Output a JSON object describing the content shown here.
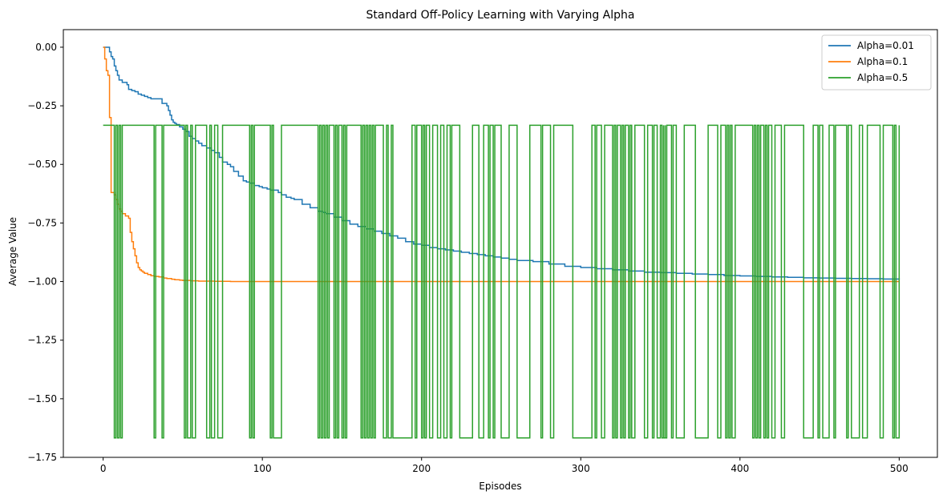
{
  "chart_data": {
    "type": "line",
    "title": "Standard Off-Policy Learning with Varying Alpha",
    "xlabel": "Episodes",
    "ylabel": "Average Value",
    "xlim": [
      -25,
      524
    ],
    "ylim": [
      -1.75,
      0.075
    ],
    "xticks": [
      0,
      100,
      200,
      300,
      400,
      500
    ],
    "xtick_labels": [
      "0",
      "100",
      "200",
      "300",
      "400",
      "500"
    ],
    "yticks": [
      0.0,
      -0.25,
      -0.5,
      -0.75,
      -1.0,
      -1.25,
      -1.5,
      -1.75
    ],
    "ytick_labels": [
      "0.00",
      "−0.25",
      "−0.50",
      "−0.75",
      "−1.00",
      "−1.25",
      "−1.50",
      "−1.75"
    ],
    "grid": false,
    "legend_position": "top-right",
    "series": [
      {
        "name": "Alpha=0.01",
        "color": "#1f77b4",
        "x": [
          0,
          3,
          4,
          5,
          6,
          7,
          8,
          9,
          10,
          12,
          15,
          16,
          18,
          20,
          22,
          24,
          26,
          28,
          30,
          35,
          37,
          40,
          41,
          42,
          43,
          44,
          45,
          46,
          48,
          50,
          52,
          54,
          56,
          58,
          60,
          62,
          65,
          68,
          70,
          73,
          75,
          78,
          80,
          82,
          85,
          88,
          90,
          92,
          95,
          98,
          100,
          103,
          105,
          110,
          112,
          115,
          118,
          120,
          125,
          130,
          135,
          138,
          140,
          145,
          150,
          155,
          160,
          165,
          170,
          175,
          180,
          185,
          190,
          195,
          200,
          205,
          210,
          215,
          220,
          225,
          230,
          235,
          240,
          245,
          250,
          255,
          260,
          270,
          280,
          290,
          300,
          310,
          320,
          330,
          340,
          350,
          360,
          370,
          380,
          390,
          400,
          410,
          420,
          430,
          440,
          450,
          460,
          470,
          480,
          490,
          500
        ],
        "y": [
          0.0,
          0.0,
          -0.02,
          -0.04,
          -0.05,
          -0.08,
          -0.1,
          -0.12,
          -0.14,
          -0.15,
          -0.16,
          -0.18,
          -0.185,
          -0.19,
          -0.2,
          -0.205,
          -0.21,
          -0.215,
          -0.22,
          -0.22,
          -0.24,
          -0.25,
          -0.27,
          -0.29,
          -0.31,
          -0.32,
          -0.325,
          -0.33,
          -0.34,
          -0.35,
          -0.36,
          -0.38,
          -0.39,
          -0.4,
          -0.41,
          -0.42,
          -0.43,
          -0.44,
          -0.45,
          -0.47,
          -0.49,
          -0.5,
          -0.51,
          -0.53,
          -0.55,
          -0.57,
          -0.575,
          -0.58,
          -0.59,
          -0.595,
          -0.6,
          -0.605,
          -0.61,
          -0.62,
          -0.63,
          -0.64,
          -0.645,
          -0.65,
          -0.67,
          -0.685,
          -0.7,
          -0.705,
          -0.71,
          -0.725,
          -0.74,
          -0.755,
          -0.765,
          -0.775,
          -0.785,
          -0.795,
          -0.805,
          -0.815,
          -0.83,
          -0.84,
          -0.845,
          -0.855,
          -0.86,
          -0.865,
          -0.87,
          -0.875,
          -0.88,
          -0.885,
          -0.89,
          -0.895,
          -0.9,
          -0.905,
          -0.91,
          -0.915,
          -0.925,
          -0.935,
          -0.94,
          -0.945,
          -0.95,
          -0.955,
          -0.96,
          -0.962,
          -0.965,
          -0.968,
          -0.97,
          -0.974,
          -0.976,
          -0.978,
          -0.98,
          -0.982,
          -0.984,
          -0.985,
          -0.986,
          -0.987,
          -0.988,
          -0.989,
          -0.99
        ]
      },
      {
        "name": "Alpha=0.1",
        "color": "#ff7f0e",
        "x": [
          0,
          1,
          2,
          3,
          4,
          5,
          6,
          7,
          8,
          9,
          10,
          11,
          12,
          13,
          14,
          15,
          16,
          17,
          18,
          19,
          20,
          21,
          22,
          23,
          24,
          25,
          26,
          28,
          30,
          32,
          35,
          38,
          40,
          43,
          45,
          48,
          50,
          55,
          60,
          70,
          80,
          100,
          150,
          200,
          300,
          400,
          500
        ],
        "y": [
          0.0,
          -0.05,
          -0.1,
          -0.12,
          -0.3,
          -0.62,
          -0.62,
          -0.63,
          -0.65,
          -0.67,
          -0.69,
          -0.7,
          -0.71,
          -0.71,
          -0.72,
          -0.72,
          -0.73,
          -0.79,
          -0.83,
          -0.86,
          -0.89,
          -0.92,
          -0.94,
          -0.95,
          -0.955,
          -0.96,
          -0.965,
          -0.97,
          -0.975,
          -0.978,
          -0.98,
          -0.985,
          -0.987,
          -0.99,
          -0.992,
          -0.994,
          -0.995,
          -0.997,
          -0.998,
          -0.999,
          -1.0,
          -1.0,
          -1.0,
          -1.0,
          -1.0,
          -1.0,
          -1.0
        ]
      },
      {
        "name": "Alpha=0.5",
        "color": "#2ca02c",
        "values_high": -0.333,
        "values_low": -1.667,
        "x_start": 0,
        "x_end": 500,
        "low_segments": [
          [
            7,
            8
          ],
          [
            9,
            10
          ],
          [
            11,
            12
          ],
          [
            32,
            33
          ],
          [
            37,
            38
          ],
          [
            51,
            52
          ],
          [
            53,
            55
          ],
          [
            56,
            58
          ],
          [
            65,
            67
          ],
          [
            68,
            70
          ],
          [
            72,
            75
          ],
          [
            92,
            93
          ],
          [
            94,
            95
          ],
          [
            105,
            106
          ],
          [
            107,
            112
          ],
          [
            135,
            136
          ],
          [
            137,
            138
          ],
          [
            139,
            140
          ],
          [
            141,
            142
          ],
          [
            145,
            146
          ],
          [
            147,
            148
          ],
          [
            150,
            151
          ],
          [
            152,
            153
          ],
          [
            162,
            163
          ],
          [
            164,
            165
          ],
          [
            166,
            167
          ],
          [
            168,
            169
          ],
          [
            170,
            171
          ],
          [
            176,
            178
          ],
          [
            179,
            181
          ],
          [
            182,
            194
          ],
          [
            196,
            197
          ],
          [
            200,
            201
          ],
          [
            202,
            203
          ],
          [
            205,
            207
          ],
          [
            210,
            212
          ],
          [
            214,
            216
          ],
          [
            218,
            219
          ],
          [
            224,
            232
          ],
          [
            236,
            239
          ],
          [
            242,
            243
          ],
          [
            245,
            246
          ],
          [
            250,
            255
          ],
          [
            260,
            268
          ],
          [
            275,
            276
          ],
          [
            281,
            283
          ],
          [
            295,
            307
          ],
          [
            309,
            310
          ],
          [
            313,
            315
          ],
          [
            320,
            321
          ],
          [
            322,
            323
          ],
          [
            325,
            326
          ],
          [
            327,
            328
          ],
          [
            330,
            331
          ],
          [
            332,
            334
          ],
          [
            340,
            342
          ],
          [
            345,
            346
          ],
          [
            348,
            350
          ],
          [
            351,
            352
          ],
          [
            352,
            353
          ],
          [
            353,
            354
          ],
          [
            357,
            358
          ],
          [
            360,
            365
          ],
          [
            372,
            380
          ],
          [
            386,
            388
          ],
          [
            391,
            392
          ],
          [
            393,
            394
          ],
          [
            395,
            397
          ],
          [
            408,
            409
          ],
          [
            410,
            411
          ],
          [
            412,
            413
          ],
          [
            415,
            416
          ],
          [
            417,
            418
          ],
          [
            420,
            422
          ],
          [
            426,
            428
          ],
          [
            440,
            446
          ],
          [
            449,
            450
          ],
          [
            452,
            456
          ],
          [
            459,
            460
          ],
          [
            467,
            468
          ],
          [
            470,
            475
          ],
          [
            477,
            480
          ],
          [
            488,
            490
          ],
          [
            496,
            497
          ],
          [
            498,
            500
          ]
        ]
      }
    ]
  }
}
